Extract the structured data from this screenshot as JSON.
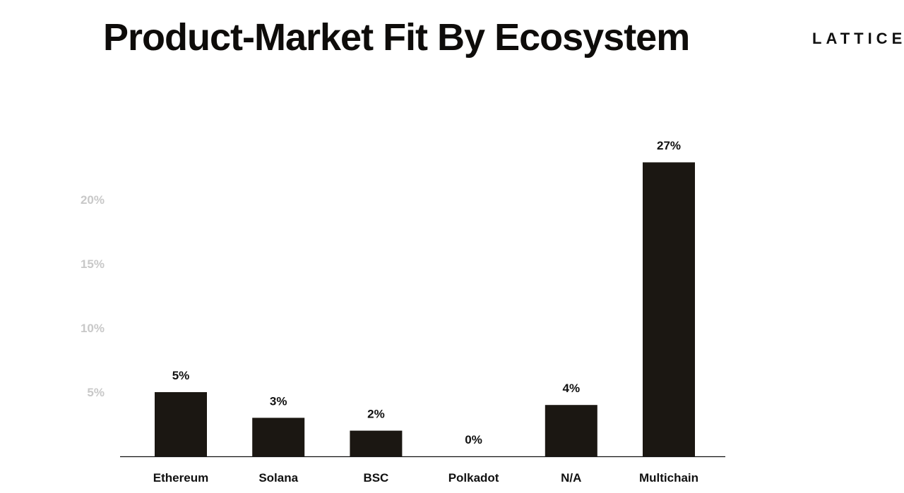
{
  "slide": {
    "title": "Product-Market Fit By Ecosystem",
    "brand": "LATTICE"
  },
  "colors": {
    "bar": "#1b1712",
    "axis": "#111111",
    "tick_text": "#c8c8c8"
  },
  "chart_data": {
    "type": "bar",
    "title": "Product-Market Fit By Ecosystem",
    "xlabel": "",
    "ylabel": "",
    "categories": [
      "Ethereum",
      "Solana",
      "BSC",
      "Polkadot",
      "N/A",
      "Multichain"
    ],
    "values": [
      5,
      3,
      2,
      0,
      4,
      27
    ],
    "data_labels": [
      "5%",
      "3%",
      "2%",
      "0%",
      "4%",
      "27%"
    ],
    "yticks": [
      5,
      10,
      15,
      20
    ],
    "ytick_labels": [
      "5%",
      "10%",
      "15%",
      "20%"
    ],
    "grid": false,
    "legend": "none"
  }
}
